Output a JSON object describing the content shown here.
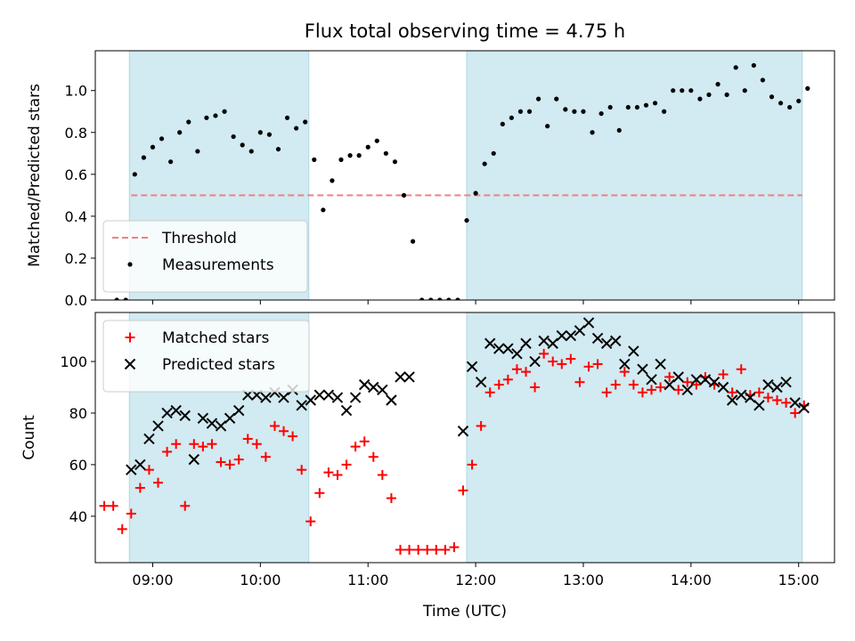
{
  "chart_data": {
    "title": "Flux total observing time = 4.75 h",
    "xlabel": "Time (UTC)",
    "x_ticks": [
      "09:00",
      "10:00",
      "11:00",
      "12:00",
      "13:00",
      "14:00",
      "15:00"
    ],
    "xlim": [
      "08:28",
      "15:20"
    ],
    "shaded_intervals": [
      [
        "08:47",
        "10:27"
      ],
      [
        "11:55",
        "15:02"
      ]
    ],
    "shade_color": "#add8e6",
    "panels": [
      {
        "type": "scatter",
        "ylabel": "Matched/Predicted stars",
        "ylim": [
          0,
          1.19
        ],
        "y_ticks": [
          0.0,
          0.2,
          0.4,
          0.6,
          0.8,
          1.0
        ],
        "threshold": {
          "name": "Threshold",
          "value": 0.5,
          "x_range": [
            "08:48",
            "15:02"
          ],
          "color": "#f08080",
          "style": "dashed"
        },
        "legend_position": "lower-left",
        "series": [
          {
            "name": "Measurements",
            "marker": "dot",
            "color": "#000000",
            "points": [
              [
                "08:40",
                0.0
              ],
              [
                "08:45",
                0.0
              ],
              [
                "08:50",
                0.6
              ],
              [
                "08:55",
                0.68
              ],
              [
                "09:00",
                0.73
              ],
              [
                "09:05",
                0.77
              ],
              [
                "09:10",
                0.66
              ],
              [
                "09:15",
                0.8
              ],
              [
                "09:20",
                0.85
              ],
              [
                "09:25",
                0.71
              ],
              [
                "09:30",
                0.87
              ],
              [
                "09:35",
                0.88
              ],
              [
                "09:40",
                0.9
              ],
              [
                "09:45",
                0.78
              ],
              [
                "09:50",
                0.74
              ],
              [
                "09:55",
                0.71
              ],
              [
                "10:00",
                0.8
              ],
              [
                "10:05",
                0.79
              ],
              [
                "10:10",
                0.72
              ],
              [
                "10:15",
                0.87
              ],
              [
                "10:20",
                0.82
              ],
              [
                "10:25",
                0.85
              ],
              [
                "10:30",
                0.67
              ],
              [
                "10:35",
                0.43
              ],
              [
                "10:40",
                0.57
              ],
              [
                "10:45",
                0.67
              ],
              [
                "10:50",
                0.69
              ],
              [
                "10:55",
                0.69
              ],
              [
                "11:00",
                0.73
              ],
              [
                "11:05",
                0.76
              ],
              [
                "11:10",
                0.7
              ],
              [
                "11:15",
                0.66
              ],
              [
                "11:20",
                0.5
              ],
              [
                "11:25",
                0.28
              ],
              [
                "11:30",
                0.0
              ],
              [
                "11:35",
                0.0
              ],
              [
                "11:40",
                0.0
              ],
              [
                "11:45",
                0.0
              ],
              [
                "11:50",
                0.0
              ],
              [
                "11:55",
                0.38
              ],
              [
                "12:00",
                0.51
              ],
              [
                "12:05",
                0.65
              ],
              [
                "12:10",
                0.7
              ],
              [
                "12:15",
                0.84
              ],
              [
                "12:20",
                0.87
              ],
              [
                "12:25",
                0.9
              ],
              [
                "12:30",
                0.9
              ],
              [
                "12:35",
                0.96
              ],
              [
                "12:40",
                0.83
              ],
              [
                "12:45",
                0.96
              ],
              [
                "12:50",
                0.91
              ],
              [
                "12:55",
                0.9
              ],
              [
                "13:00",
                0.9
              ],
              [
                "13:05",
                0.8
              ],
              [
                "13:10",
                0.89
              ],
              [
                "13:15",
                0.92
              ],
              [
                "13:20",
                0.81
              ],
              [
                "13:25",
                0.92
              ],
              [
                "13:30",
                0.92
              ],
              [
                "13:35",
                0.93
              ],
              [
                "13:40",
                0.94
              ],
              [
                "13:45",
                0.9
              ],
              [
                "13:50",
                1.0
              ],
              [
                "13:55",
                1.0
              ],
              [
                "14:00",
                1.0
              ],
              [
                "14:05",
                0.96
              ],
              [
                "14:10",
                0.98
              ],
              [
                "14:15",
                1.03
              ],
              [
                "14:20",
                0.98
              ],
              [
                "14:25",
                1.11
              ],
              [
                "14:30",
                1.0
              ],
              [
                "14:35",
                1.12
              ],
              [
                "14:40",
                1.05
              ],
              [
                "14:45",
                0.97
              ],
              [
                "14:50",
                0.94
              ],
              [
                "14:55",
                0.92
              ],
              [
                "15:00",
                0.95
              ],
              [
                "15:05",
                1.01
              ]
            ]
          }
        ]
      },
      {
        "type": "scatter",
        "ylabel": "Count",
        "ylim": [
          22,
          119
        ],
        "y_ticks": [
          40,
          60,
          80,
          100
        ],
        "legend_position": "upper-left",
        "series": [
          {
            "name": "Matched stars",
            "marker": "plus",
            "color": "#ff0000",
            "points": [
              [
                "08:33",
                44
              ],
              [
                "08:38",
                44
              ],
              [
                "08:43",
                35
              ],
              [
                "08:48",
                41
              ],
              [
                "08:53",
                51
              ],
              [
                "08:58",
                58
              ],
              [
                "09:03",
                53
              ],
              [
                "09:08",
                65
              ],
              [
                "09:13",
                68
              ],
              [
                "09:18",
                44
              ],
              [
                "09:23",
                68
              ],
              [
                "09:28",
                67
              ],
              [
                "09:33",
                68
              ],
              [
                "09:38",
                61
              ],
              [
                "09:43",
                60
              ],
              [
                "09:48",
                62
              ],
              [
                "09:53",
                70
              ],
              [
                "09:58",
                68
              ],
              [
                "10:03",
                63
              ],
              [
                "10:08",
                75
              ],
              [
                "10:13",
                73
              ],
              [
                "10:18",
                71
              ],
              [
                "10:23",
                58
              ],
              [
                "10:28",
                38
              ],
              [
                "10:33",
                49
              ],
              [
                "10:38",
                57
              ],
              [
                "10:43",
                56
              ],
              [
                "10:48",
                60
              ],
              [
                "10:53",
                67
              ],
              [
                "10:58",
                69
              ],
              [
                "11:03",
                63
              ],
              [
                "11:08",
                56
              ],
              [
                "11:13",
                47
              ],
              [
                "11:18",
                27
              ],
              [
                "11:23",
                27
              ],
              [
                "11:28",
                27
              ],
              [
                "11:33",
                27
              ],
              [
                "11:38",
                27
              ],
              [
                "11:43",
                27
              ],
              [
                "11:48",
                28
              ],
              [
                "11:53",
                50
              ],
              [
                "11:58",
                60
              ],
              [
                "12:03",
                75
              ],
              [
                "12:08",
                88
              ],
              [
                "12:13",
                91
              ],
              [
                "12:18",
                93
              ],
              [
                "12:23",
                97
              ],
              [
                "12:28",
                96
              ],
              [
                "12:33",
                90
              ],
              [
                "12:38",
                103
              ],
              [
                "12:43",
                100
              ],
              [
                "12:48",
                99
              ],
              [
                "12:53",
                101
              ],
              [
                "12:58",
                92
              ],
              [
                "13:03",
                98
              ],
              [
                "13:08",
                99
              ],
              [
                "13:13",
                88
              ],
              [
                "13:18",
                91
              ],
              [
                "13:23",
                96
              ],
              [
                "13:28",
                91
              ],
              [
                "13:33",
                88
              ],
              [
                "13:38",
                89
              ],
              [
                "13:43",
                90
              ],
              [
                "13:48",
                94
              ],
              [
                "13:53",
                89
              ],
              [
                "13:58",
                92
              ],
              [
                "14:03",
                91
              ],
              [
                "14:08",
                94
              ],
              [
                "14:13",
                91
              ],
              [
                "14:18",
                95
              ],
              [
                "14:23",
                88
              ],
              [
                "14:28",
                97
              ],
              [
                "14:33",
                87
              ],
              [
                "14:38",
                88
              ],
              [
                "14:43",
                86
              ],
              [
                "14:48",
                85
              ],
              [
                "14:53",
                84
              ],
              [
                "14:58",
                80
              ],
              [
                "15:03",
                83
              ]
            ]
          },
          {
            "name": "Predicted stars",
            "marker": "x",
            "color": "#000000",
            "points": [
              [
                "08:48",
                58
              ],
              [
                "08:53",
                60
              ],
              [
                "08:58",
                70
              ],
              [
                "09:03",
                75
              ],
              [
                "09:08",
                80
              ],
              [
                "09:13",
                81
              ],
              [
                "09:18",
                79
              ],
              [
                "09:23",
                62
              ],
              [
                "09:28",
                78
              ],
              [
                "09:33",
                76
              ],
              [
                "09:38",
                75
              ],
              [
                "09:43",
                78
              ],
              [
                "09:48",
                81
              ],
              [
                "09:53",
                87
              ],
              [
                "09:58",
                87
              ],
              [
                "10:03",
                86
              ],
              [
                "10:08",
                88
              ],
              [
                "10:13",
                86
              ],
              [
                "10:18",
                89
              ],
              [
                "10:23",
                83
              ],
              [
                "10:28",
                85
              ],
              [
                "10:33",
                87
              ],
              [
                "10:38",
                87
              ],
              [
                "10:43",
                86
              ],
              [
                "10:48",
                81
              ],
              [
                "10:53",
                86
              ],
              [
                "10:58",
                91
              ],
              [
                "11:03",
                90
              ],
              [
                "11:08",
                89
              ],
              [
                "11:13",
                85
              ],
              [
                "11:18",
                94
              ],
              [
                "11:23",
                94
              ],
              [
                "11:53",
                73
              ],
              [
                "11:58",
                98
              ],
              [
                "12:03",
                92
              ],
              [
                "12:08",
                107
              ],
              [
                "12:13",
                105
              ],
              [
                "12:18",
                105
              ],
              [
                "12:23",
                103
              ],
              [
                "12:28",
                107
              ],
              [
                "12:33",
                100
              ],
              [
                "12:38",
                108
              ],
              [
                "12:43",
                107
              ],
              [
                "12:48",
                110
              ],
              [
                "12:53",
                110
              ],
              [
                "12:58",
                112
              ],
              [
                "13:03",
                115
              ],
              [
                "13:08",
                109
              ],
              [
                "13:13",
                107
              ],
              [
                "13:18",
                108
              ],
              [
                "13:23",
                99
              ],
              [
                "13:28",
                104
              ],
              [
                "13:33",
                97
              ],
              [
                "13:38",
                93
              ],
              [
                "13:43",
                99
              ],
              [
                "13:48",
                91
              ],
              [
                "13:53",
                94
              ],
              [
                "13:58",
                89
              ],
              [
                "14:03",
                93
              ],
              [
                "14:08",
                93
              ],
              [
                "14:13",
                92
              ],
              [
                "14:18",
                90
              ],
              [
                "14:23",
                85
              ],
              [
                "14:28",
                87
              ],
              [
                "14:33",
                86
              ],
              [
                "14:38",
                83
              ],
              [
                "14:43",
                91
              ],
              [
                "14:48",
                90
              ],
              [
                "14:53",
                92
              ],
              [
                "14:58",
                84
              ],
              [
                "15:03",
                82
              ]
            ]
          }
        ]
      }
    ]
  }
}
